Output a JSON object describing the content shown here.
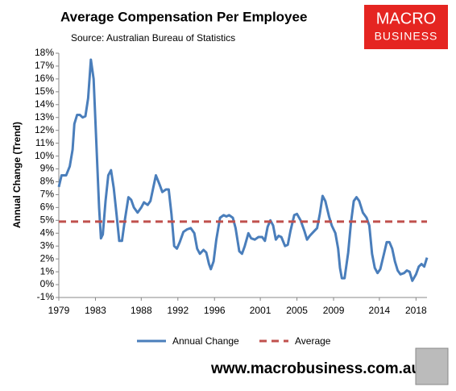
{
  "chart_data": {
    "type": "line",
    "title": "Average Compensation Per Employee",
    "subtitle": "Source: Australian Bureau of Statistics",
    "y_label": "Annual Change (Trend)",
    "xlim": [
      1979,
      2019.2
    ],
    "xticks": [
      1979,
      1983,
      1988,
      1992,
      1996,
      2001,
      2005,
      2009,
      2014,
      2018
    ],
    "ylim": [
      -1,
      18
    ],
    "yticks": [
      {
        "value": -1,
        "label": "-1%"
      },
      {
        "value": 0,
        "label": "0%"
      },
      {
        "value": 1,
        "label": "1%"
      },
      {
        "value": 2,
        "label": "2%"
      },
      {
        "value": 3,
        "label": "3%"
      },
      {
        "value": 4,
        "label": "4%"
      },
      {
        "value": 5,
        "label": "5%"
      },
      {
        "value": 6,
        "label": "6%"
      },
      {
        "value": 7,
        "label": "7%"
      },
      {
        "value": 8,
        "label": "8%"
      },
      {
        "value": 9,
        "label": "9%"
      },
      {
        "value": 10,
        "label": "10%"
      },
      {
        "value": 11,
        "label": "11%"
      },
      {
        "value": 12,
        "label": "12%"
      },
      {
        "value": 13,
        "label": "13%"
      },
      {
        "value": 14,
        "label": "14%"
      },
      {
        "value": 15,
        "label": "15%"
      },
      {
        "value": 16,
        "label": "16%"
      },
      {
        "value": 17,
        "label": "17%"
      },
      {
        "value": 18,
        "label": "18%"
      }
    ],
    "series": [
      {
        "name": "Annual Change",
        "color": "#4a7ebb",
        "dashed": false,
        "x": [
          1979.0,
          1979.3,
          1979.8,
          1980.2,
          1980.5,
          1980.7,
          1981.0,
          1981.3,
          1981.6,
          1981.9,
          1982.2,
          1982.5,
          1982.8,
          1983.1,
          1983.4,
          1983.6,
          1983.8,
          1984.1,
          1984.4,
          1984.7,
          1985.0,
          1985.3,
          1985.6,
          1985.9,
          1986.2,
          1986.6,
          1986.9,
          1987.2,
          1987.6,
          1988.0,
          1988.3,
          1988.7,
          1989.0,
          1989.3,
          1989.6,
          1990.0,
          1990.3,
          1990.7,
          1991.0,
          1991.3,
          1991.6,
          1991.9,
          1992.2,
          1992.6,
          1993.0,
          1993.4,
          1993.8,
          1994.1,
          1994.4,
          1994.8,
          1995.1,
          1995.4,
          1995.6,
          1995.9,
          1996.2,
          1996.6,
          1997.0,
          1997.3,
          1997.6,
          1998.0,
          1998.3,
          1998.7,
          1999.0,
          1999.3,
          1999.7,
          2000.0,
          2000.4,
          2000.8,
          2001.2,
          2001.5,
          2001.8,
          2002.1,
          2002.4,
          2002.7,
          2003.0,
          2003.3,
          2003.7,
          2004.0,
          2004.3,
          2004.7,
          2005.0,
          2005.4,
          2005.8,
          2006.1,
          2006.4,
          2006.8,
          2007.2,
          2007.5,
          2007.8,
          2008.1,
          2008.5,
          2008.8,
          2009.2,
          2009.5,
          2009.7,
          2009.9,
          2010.2,
          2010.6,
          2010.9,
          2011.2,
          2011.5,
          2011.8,
          2012.2,
          2012.6,
          2012.9,
          2013.2,
          2013.5,
          2013.8,
          2014.1,
          2014.5,
          2014.8,
          2015.1,
          2015.4,
          2015.7,
          2016.0,
          2016.3,
          2016.7,
          2017.0,
          2017.3,
          2017.6,
          2018.0,
          2018.3,
          2018.6,
          2018.9,
          2019.2
        ],
        "values": [
          7.6,
          8.5,
          8.5,
          9.2,
          10.5,
          12.5,
          13.2,
          13.2,
          13.0,
          13.1,
          14.5,
          17.5,
          16.0,
          11.0,
          6.0,
          3.6,
          3.9,
          6.5,
          8.5,
          8.9,
          7.5,
          5.5,
          3.4,
          3.4,
          5.0,
          6.8,
          6.6,
          6.0,
          5.6,
          6.0,
          6.4,
          6.2,
          6.5,
          7.5,
          8.5,
          7.8,
          7.2,
          7.4,
          7.4,
          5.5,
          3.0,
          2.8,
          3.3,
          4.1,
          4.3,
          4.4,
          4.0,
          2.8,
          2.4,
          2.7,
          2.5,
          1.6,
          1.2,
          1.8,
          3.5,
          5.2,
          5.4,
          5.3,
          5.4,
          5.2,
          4.4,
          2.6,
          2.4,
          3.0,
          4.0,
          3.6,
          3.5,
          3.7,
          3.7,
          3.4,
          4.5,
          5.0,
          4.6,
          3.5,
          3.8,
          3.7,
          3.0,
          3.1,
          4.2,
          5.4,
          5.5,
          5.0,
          4.2,
          3.5,
          3.8,
          4.1,
          4.4,
          5.5,
          6.9,
          6.5,
          5.3,
          4.6,
          4.0,
          2.8,
          1.3,
          0.5,
          0.5,
          2.5,
          4.8,
          6.5,
          6.8,
          6.5,
          5.6,
          5.2,
          4.6,
          2.4,
          1.3,
          0.9,
          1.2,
          2.4,
          3.3,
          3.3,
          2.8,
          1.8,
          1.1,
          0.8,
          0.9,
          1.1,
          1.0,
          0.3,
          0.8,
          1.4,
          1.6,
          1.4,
          2.1
        ]
      },
      {
        "name": "Average",
        "color": "#c0504d",
        "dashed": true,
        "x": [
          1979.0,
          2019.2
        ],
        "values": [
          4.9,
          4.9
        ]
      }
    ]
  },
  "logo_lines": [
    "MACRO",
    "BUSINESS"
  ],
  "footer": "www.macrobusiness.com.au"
}
